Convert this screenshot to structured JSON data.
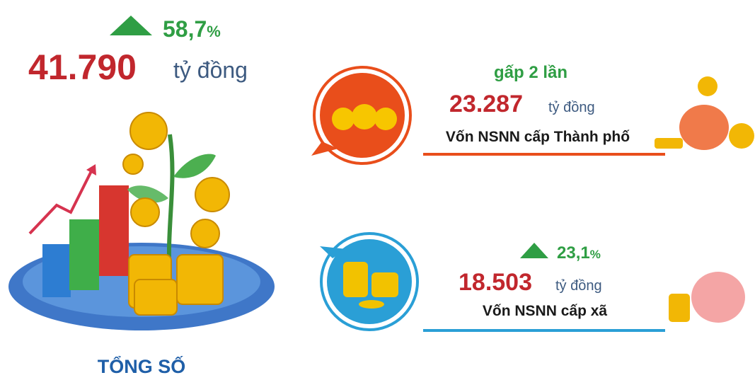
{
  "total": {
    "change": "58,7",
    "change_unit": "%",
    "amount": "41.790",
    "unit": "tỷ đồng",
    "label": "TỔNG SỐ"
  },
  "items": [
    {
      "note": "gấp 2 lần",
      "amount": "23.287",
      "unit": "tỷ đồng",
      "label": "Vốn NSNN cấp Thành phố"
    },
    {
      "change": "23,1",
      "change_unit": "%",
      "amount": "18.503",
      "unit": "tỷ đồng",
      "label": "Vốn NSNN cấp xã"
    }
  ]
}
